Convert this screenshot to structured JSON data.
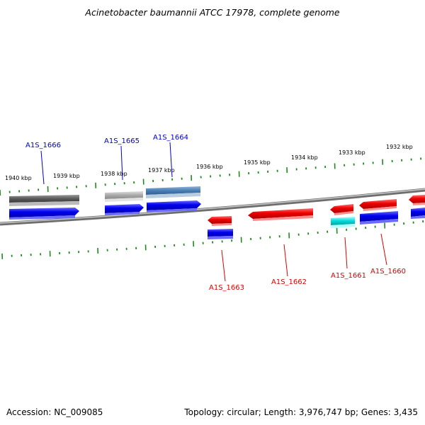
{
  "title": "Acinetobacter baumannii ATCC 17978, complete genome",
  "footer": {
    "accession": "Accession: NC_009085",
    "summary": "Topology: circular; Length: 3,976,747 bp; Genes: 3,435"
  },
  "colors": {
    "plus_label": "#0000cc",
    "minus_label": "#dd0000",
    "tick": "#228822",
    "backbone": "#8a8a8a"
  },
  "tick_labels": [
    "1940 kbp",
    "1939 kbp",
    "1938 kbp",
    "1937 kbp",
    "1936 kbp",
    "1935 kbp",
    "1934 kbp",
    "1933 kbp",
    "1932 kbp"
  ],
  "gene_labels": {
    "plus": [
      "A1S_1666",
      "A1S_1665",
      "A1S_1664"
    ],
    "minus": [
      "A1S_1663",
      "A1S_1662",
      "A1S_1661",
      "A1S_1660"
    ]
  }
}
